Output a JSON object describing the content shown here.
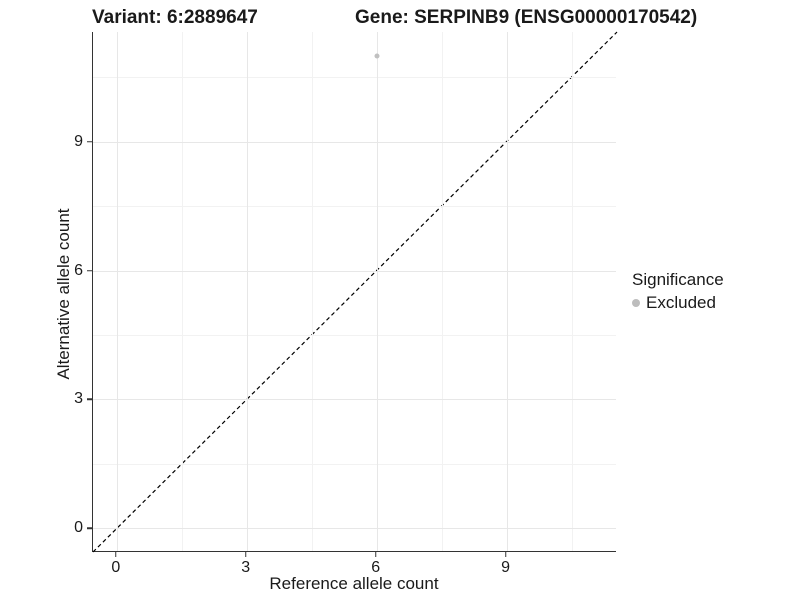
{
  "titles": {
    "variant": "Variant: 6:2889647",
    "gene": "Gene: SERPINB9 (ENSG00000170542)"
  },
  "chart_data": {
    "type": "scatter",
    "title_left": "Variant: 6:2889647",
    "title_right": "Gene: SERPINB9 (ENSG00000170542)",
    "xlabel": "Reference allele count",
    "ylabel": "Alternative allele count",
    "xlim": [
      -0.55,
      11.55
    ],
    "ylim": [
      -0.55,
      11.55
    ],
    "xticks": [
      0,
      3,
      6,
      9
    ],
    "yticks": [
      0,
      3,
      6,
      9
    ],
    "x_minor_ticks": [
      1.5,
      4.5,
      7.5,
      10.5
    ],
    "y_minor_ticks": [
      1.5,
      4.5,
      7.5,
      10.5
    ],
    "grid": true,
    "reference_line": {
      "description": "identity line y = x",
      "style": "dashed",
      "color": "#000000",
      "from": [
        -0.55,
        -0.55
      ],
      "to": [
        11.55,
        11.55
      ]
    },
    "series": [
      {
        "name": "Excluded",
        "color": "#c0c0c0",
        "points": [
          {
            "x": 6,
            "y": 11
          }
        ]
      }
    ],
    "legend": {
      "title": "Significance",
      "position": "right",
      "items": [
        {
          "label": "Excluded",
          "color": "#bdbdbd"
        }
      ]
    }
  },
  "colors": {
    "axis_line": "#333333",
    "grid_major": "#e7e7e7",
    "grid_minor": "#f2f2f2",
    "text": "#1a1a1a",
    "point_gray": "#c0c0c0"
  }
}
